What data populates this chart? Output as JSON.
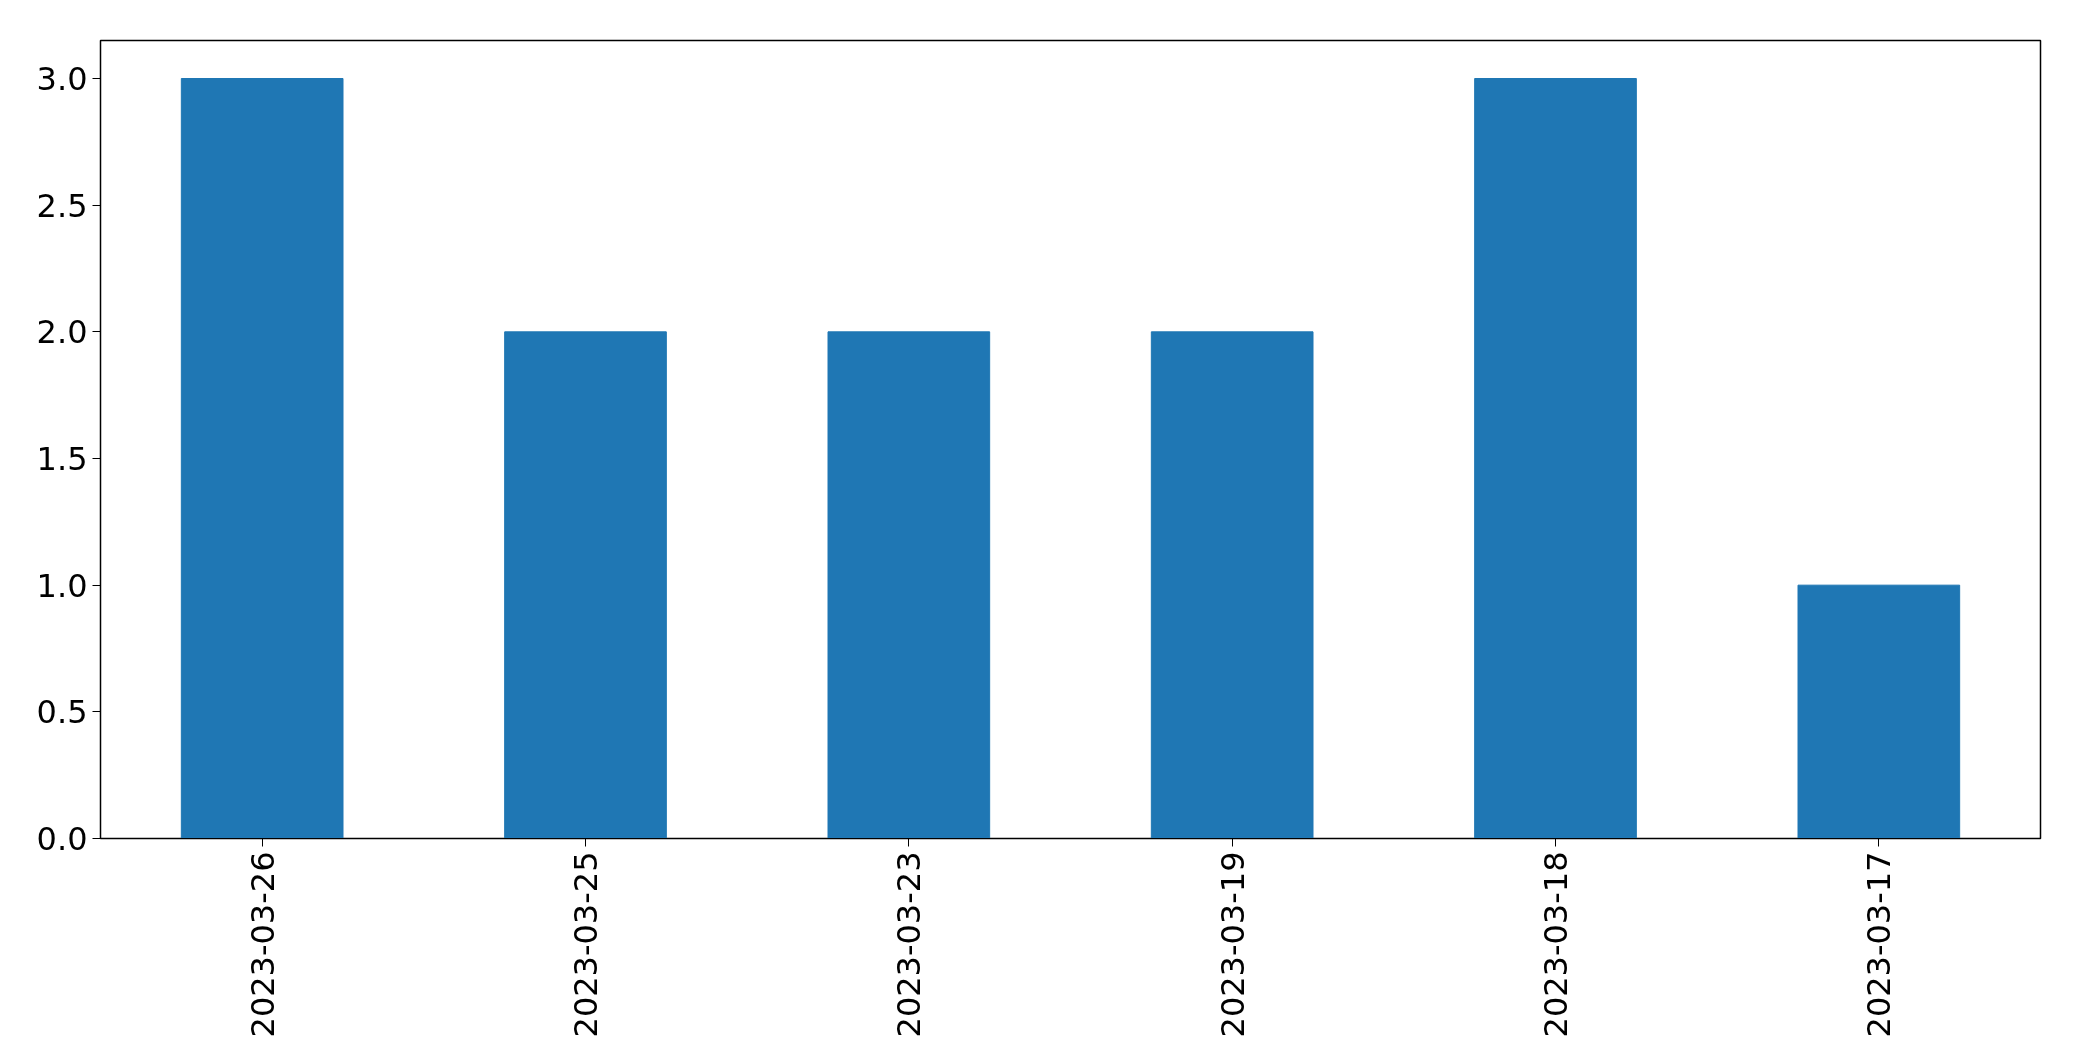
{
  "chart_data": {
    "type": "bar",
    "categories": [
      "2023-03-26",
      "2023-03-25",
      "2023-03-23",
      "2023-03-19",
      "2023-03-18",
      "2023-03-17"
    ],
    "values": [
      3,
      2,
      2,
      2,
      3,
      1
    ],
    "color": "#1f77b4",
    "ylim": [
      0,
      3.15
    ],
    "yticks": [
      {
        "value": 0,
        "label": "0.0"
      },
      {
        "value": 0.5,
        "label": "0.5"
      },
      {
        "value": 1,
        "label": "1.0"
      },
      {
        "value": 1.5,
        "label": "1.5"
      },
      {
        "value": 2,
        "label": "2.0"
      },
      {
        "value": 2.5,
        "label": "2.5"
      },
      {
        "value": 3,
        "label": "3.0"
      }
    ],
    "grid": false
  }
}
